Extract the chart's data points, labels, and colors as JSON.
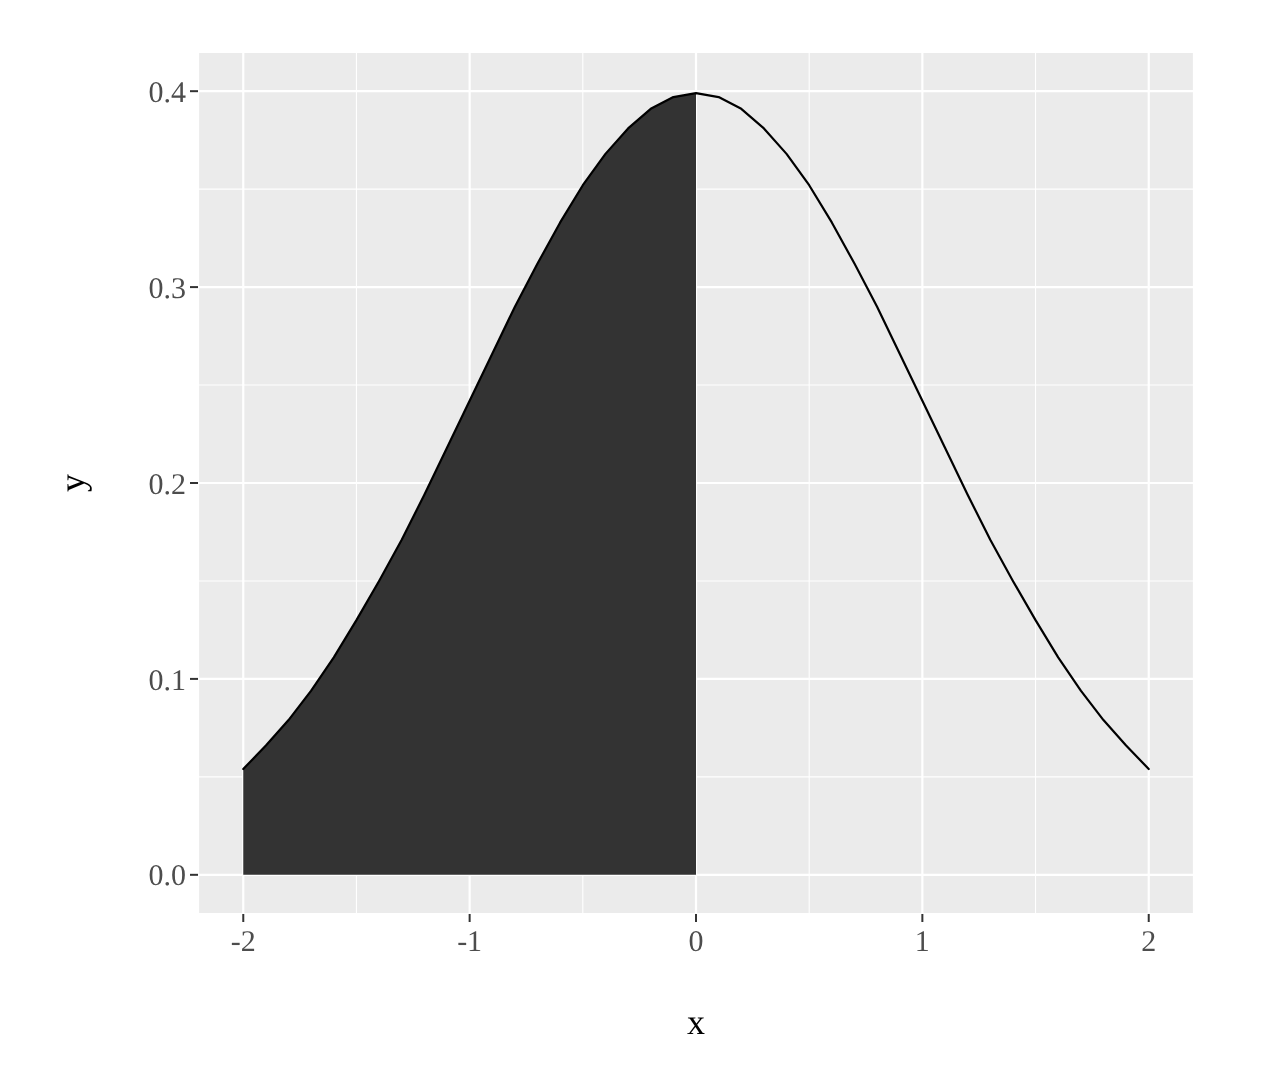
{
  "chart_data": {
    "type": "line",
    "xlabel": "x",
    "ylabel": "y",
    "series": [
      {
        "type": "area",
        "color": "#333333",
        "x": [
          -2,
          -1.9,
          -1.8,
          -1.7,
          -1.6,
          -1.5,
          -1.4,
          -1.3,
          -1.2,
          -1.1,
          -1,
          -0.9,
          -0.8,
          -0.7,
          -0.6,
          -0.5,
          -0.4,
          -0.3,
          -0.2,
          -0.1,
          0
        ],
        "values": [
          0.054,
          0.066,
          0.079,
          0.094,
          0.111,
          0.13,
          0.15,
          0.171,
          0.194,
          0.218,
          0.242,
          0.266,
          0.29,
          0.312,
          0.333,
          0.352,
          0.368,
          0.381,
          0.391,
          0.397,
          0.399
        ]
      },
      {
        "type": "line",
        "color": "#000000",
        "x": [
          -2,
          -1.9,
          -1.8,
          -1.7,
          -1.6,
          -1.5,
          -1.4,
          -1.3,
          -1.2,
          -1.1,
          -1,
          -0.9,
          -0.8,
          -0.7,
          -0.6,
          -0.5,
          -0.4,
          -0.3,
          -0.2,
          -0.1,
          0,
          0.1,
          0.2,
          0.3,
          0.4,
          0.5,
          0.6,
          0.7,
          0.8,
          0.9,
          1,
          1.1,
          1.2,
          1.3,
          1.4,
          1.5,
          1.6,
          1.7,
          1.8,
          1.9,
          2
        ],
        "values": [
          0.054,
          0.066,
          0.079,
          0.094,
          0.111,
          0.13,
          0.15,
          0.171,
          0.194,
          0.218,
          0.242,
          0.266,
          0.29,
          0.312,
          0.333,
          0.352,
          0.368,
          0.381,
          0.391,
          0.397,
          0.399,
          0.397,
          0.391,
          0.381,
          0.368,
          0.352,
          0.333,
          0.312,
          0.29,
          0.266,
          0.242,
          0.218,
          0.194,
          0.171,
          0.15,
          0.13,
          0.111,
          0.094,
          0.079,
          0.066,
          0.054
        ]
      }
    ],
    "xlim": [
      -2.2,
      2.2
    ],
    "xticks": [
      -2,
      -1,
      0,
      1,
      2
    ],
    "ylim": [
      -0.02,
      0.42
    ],
    "yticks": [
      {
        "value": 0,
        "label": "0.0"
      },
      0.1,
      0.2,
      0.3,
      0.4
    ],
    "grid": true,
    "line_style": "solid"
  }
}
